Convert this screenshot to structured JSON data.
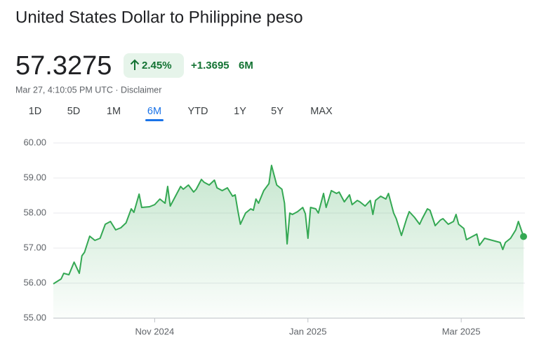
{
  "header": {
    "title": "United States Dollar to Philippine peso",
    "price": "57.3275",
    "change_percent": "2.45%",
    "change_value": "+1.3695",
    "change_period": "6M",
    "timestamp": "Mar 27, 4:10:05 PM UTC · Disclaimer"
  },
  "tabs": {
    "items": [
      "1D",
      "5D",
      "1M",
      "6M",
      "YTD",
      "1Y",
      "5Y",
      "MAX"
    ],
    "selected": 3
  },
  "chart_data": {
    "type": "area",
    "color": "#34a853",
    "x": [
      0,
      3,
      4,
      6,
      8,
      10,
      11,
      12,
      14,
      16,
      18,
      20,
      22,
      24,
      26,
      28,
      30,
      31,
      33,
      34,
      37,
      39,
      41,
      43,
      44,
      45,
      47,
      49,
      50,
      52,
      54,
      55,
      57,
      58,
      60,
      62,
      63,
      65,
      67,
      69,
      70,
      71,
      72,
      74,
      76,
      77,
      78,
      79,
      81,
      83,
      84,
      86,
      88,
      89,
      90,
      91,
      92,
      94,
      96,
      97,
      98,
      99,
      101,
      102,
      104,
      105,
      107,
      109,
      110,
      112,
      114,
      115,
      117,
      118,
      120,
      122,
      123,
      124,
      126,
      128,
      129,
      131,
      132,
      134,
      136,
      137,
      139,
      141,
      142,
      144,
      145,
      147,
      149,
      150,
      152,
      154,
      155,
      156,
      158,
      159,
      161,
      163,
      164,
      166,
      168,
      170,
      172,
      173,
      174,
      176,
      178,
      179,
      181
    ],
    "values": [
      55.98,
      56.12,
      56.28,
      56.24,
      56.6,
      56.28,
      56.78,
      56.88,
      57.34,
      57.22,
      57.28,
      57.68,
      57.76,
      57.52,
      57.58,
      57.72,
      58.12,
      58.02,
      58.54,
      58.16,
      58.18,
      58.24,
      58.4,
      58.28,
      58.76,
      58.2,
      58.48,
      58.76,
      58.68,
      58.8,
      58.6,
      58.68,
      58.96,
      58.88,
      58.8,
      58.94,
      58.72,
      58.64,
      58.72,
      58.48,
      58.52,
      58.08,
      57.68,
      58.0,
      58.12,
      58.08,
      58.4,
      58.28,
      58.64,
      58.84,
      59.36,
      58.8,
      58.68,
      58.28,
      57.12,
      58.0,
      57.96,
      58.04,
      58.16,
      57.98,
      57.28,
      58.16,
      58.12,
      58.0,
      58.56,
      58.16,
      58.64,
      58.56,
      58.6,
      58.32,
      58.52,
      58.24,
      58.36,
      58.32,
      58.2,
      58.36,
      57.96,
      58.36,
      58.48,
      58.4,
      58.56,
      58.0,
      57.84,
      57.36,
      57.84,
      58.04,
      57.88,
      57.68,
      57.84,
      58.12,
      58.08,
      57.64,
      57.8,
      57.84,
      57.68,
      57.76,
      57.96,
      57.68,
      57.56,
      57.24,
      57.32,
      57.4,
      57.08,
      57.28,
      57.24,
      57.2,
      57.16,
      56.96,
      57.16,
      57.28,
      57.52,
      57.76,
      57.33
    ],
    "xlim": [
      0,
      181
    ],
    "xticks": [
      {
        "value": 39,
        "label": "Nov 2024"
      },
      {
        "value": 98,
        "label": "Jan 2025"
      },
      {
        "value": 157,
        "label": "Mar 2025"
      }
    ],
    "ylim": [
      55,
      60
    ],
    "yticks": [
      {
        "value": 55,
        "label": "55.00"
      },
      {
        "value": 56,
        "label": "56.00"
      },
      {
        "value": 57,
        "label": "57.00"
      },
      {
        "value": 58,
        "label": "58.00"
      },
      {
        "value": 59,
        "label": "59.00"
      },
      {
        "value": 60,
        "label": "60.00"
      }
    ],
    "grid": true
  }
}
